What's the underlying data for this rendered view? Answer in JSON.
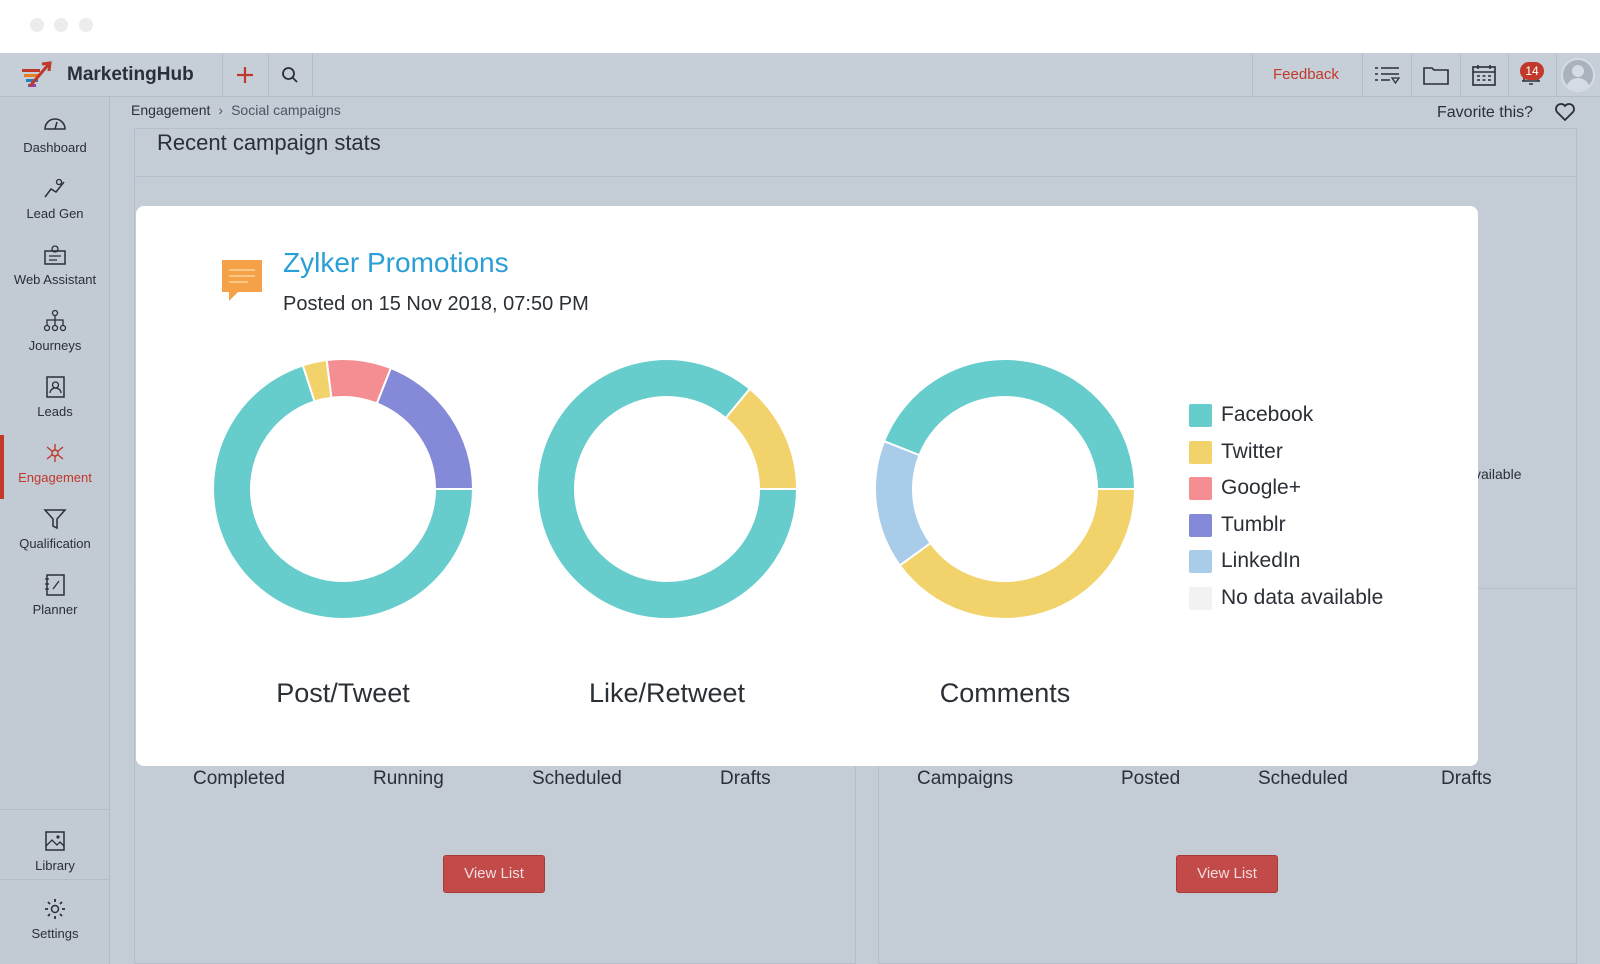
{
  "app": {
    "brand": "MarketingHub",
    "feedback_label": "Feedback",
    "notification_count": "14"
  },
  "colors": {
    "accent": "#c0392b",
    "title_blue": "#2a9fd6",
    "facebook": "#67cccc",
    "twitter": "#f2d36b",
    "googleplus": "#f48e92",
    "tumblr": "#8489d8",
    "linkedin": "#a9cde9",
    "nodata": "#f2f2f2"
  },
  "sidebar": {
    "items": [
      {
        "label": "Dashboard"
      },
      {
        "label": "Lead Gen"
      },
      {
        "label": "Web Assistant"
      },
      {
        "label": "Journeys"
      },
      {
        "label": "Leads"
      },
      {
        "label": "Engagement"
      },
      {
        "label": "Qualification"
      },
      {
        "label": "Planner"
      }
    ],
    "bottom": [
      {
        "label": "Library"
      },
      {
        "label": "Settings"
      }
    ]
  },
  "breadcrumb": {
    "parent": "Engagement",
    "current": "Social campaigns"
  },
  "favorite_label": "Favorite this?",
  "background": {
    "stats_title": "Recent campaign stats",
    "left_stats": [
      "Completed",
      "Running",
      "Scheduled",
      "Drafts"
    ],
    "right_stats": [
      "Campaigns",
      "Posted",
      "Scheduled",
      "Drafts"
    ],
    "view_list_label": "View List",
    "peek_text": "vailable"
  },
  "modal": {
    "title": "Zylker Promotions",
    "subtitle": "Posted on 15 Nov 2018, 07:50 PM"
  },
  "chart_data": {
    "type": "pie",
    "variant": "donut",
    "title": "Zylker Promotions",
    "legend": [
      "Facebook",
      "Twitter",
      "Google+",
      "Tumblr",
      "LinkedIn",
      "No data available"
    ],
    "legend_position": "right",
    "charts": [
      {
        "label": "Post/Tweet",
        "slices": [
          {
            "name": "Facebook",
            "value": 70
          },
          {
            "name": "Twitter",
            "value": 3
          },
          {
            "name": "Google+",
            "value": 8
          },
          {
            "name": "Tumblr",
            "value": 19
          }
        ]
      },
      {
        "label": "Like/Retweet",
        "slices": [
          {
            "name": "Facebook",
            "value": 86
          },
          {
            "name": "Twitter",
            "value": 14
          }
        ]
      },
      {
        "label": "Comments",
        "slices": [
          {
            "name": "Twitter",
            "value": 40
          },
          {
            "name": "LinkedIn",
            "value": 16
          },
          {
            "name": "Facebook",
            "value": 44
          }
        ]
      }
    ]
  }
}
